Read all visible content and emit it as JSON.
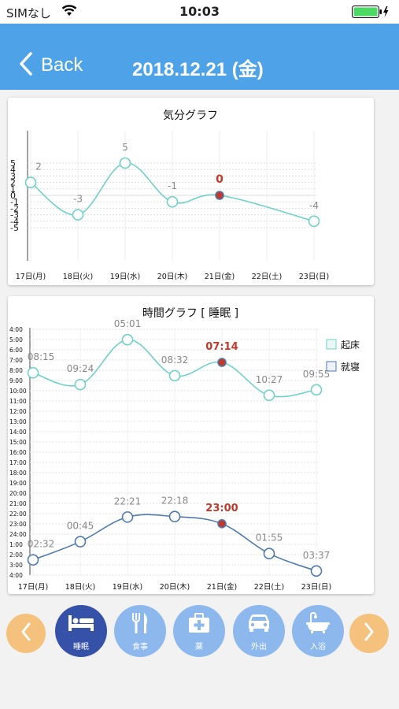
{
  "status_bar": {
    "carrier": "SIMなし",
    "time": "10:03"
  },
  "nav": {
    "back_label": "Back",
    "title": "2018.12.21 (金)"
  },
  "days": [
    "17日(月)",
    "18日(火)",
    "19日(水)",
    "20日(木)",
    "21日(金)",
    "22日(土)",
    "23日(日)"
  ],
  "colors": {
    "nav": "#4ea3e8",
    "mint": "#6fd1c8",
    "navy": "#4d78b0",
    "highlight": "#c0392b",
    "arrow": "#f5c27e",
    "active_button": "#3552a8",
    "button": "#8db8ee"
  },
  "mood_chart": {
    "type": "line",
    "title": "気分グラフ",
    "y_ticks": [
      "5",
      "4",
      "3",
      "2",
      "1",
      "0",
      "-1",
      "-2",
      "-3",
      "-4",
      "-5"
    ],
    "values": [
      2,
      -3,
      5,
      -1,
      0,
      null,
      -4
    ],
    "value_labels": [
      "2",
      "-3",
      "5",
      "-1",
      "0",
      "",
      "-4"
    ],
    "ylim": [
      -5,
      5
    ],
    "highlight_index": 4
  },
  "time_chart": {
    "type": "line",
    "title": "時間グラフ [ 睡眠 ]",
    "y_ticks": [
      "4:00",
      "5:00",
      "6:00",
      "7:00",
      "8:00",
      "9:00",
      "10:00",
      "11:00",
      "12:00",
      "13:00",
      "14:00",
      "15:00",
      "16:00",
      "17:00",
      "18:00",
      "19:00",
      "20:00",
      "21:00",
      "22:00",
      "23:00",
      "24:00",
      "1:00",
      "2:00",
      "3:00",
      "4:00"
    ],
    "legend": [
      "起床",
      "就寝"
    ],
    "wake_labels": [
      "08:15",
      "09:24",
      "05:01",
      "08:32",
      "07:14",
      "10:27",
      "09:55"
    ],
    "sleep_labels": [
      "02:32",
      "00:45",
      "22:21",
      "22:18",
      "23:00",
      "01:55",
      "03:37"
    ],
    "highlight_index": 4
  },
  "chart_data": [
    {
      "type": "line",
      "title": "気分グラフ",
      "categories": [
        "17日(月)",
        "18日(火)",
        "19日(水)",
        "20日(木)",
        "21日(金)",
        "22日(土)",
        "23日(日)"
      ],
      "values": [
        2,
        -3,
        5,
        -1,
        0,
        null,
        -4
      ],
      "ylim": [
        -5,
        5
      ],
      "grid": true
    },
    {
      "type": "line",
      "title": "時間グラフ [ 睡眠 ]",
      "categories": [
        "17日(月)",
        "18日(火)",
        "19日(水)",
        "20日(木)",
        "21日(金)",
        "22日(土)",
        "23日(日)"
      ],
      "series": [
        {
          "name": "起床",
          "values": [
            "08:15",
            "09:24",
            "05:01",
            "08:32",
            "07:14",
            "10:27",
            "09:55"
          ]
        },
        {
          "name": "就寝",
          "values": [
            "02:32",
            "00:45",
            "22:21",
            "22:18",
            "23:00",
            "01:55",
            "03:37"
          ]
        }
      ],
      "ylim": [
        "4:00",
        "4:00 (+1 day)"
      ],
      "legend_position": "top-right",
      "grid": true
    }
  ],
  "buttons": [
    {
      "label": "睡眠",
      "icon": "bed-icon",
      "active": true
    },
    {
      "label": "食事",
      "icon": "fork-knife-icon",
      "active": false
    },
    {
      "label": "薬",
      "icon": "medical-kit-icon",
      "active": false
    },
    {
      "label": "外出",
      "icon": "car-icon",
      "active": false
    },
    {
      "label": "入浴",
      "icon": "bathtub-icon",
      "active": false
    }
  ]
}
